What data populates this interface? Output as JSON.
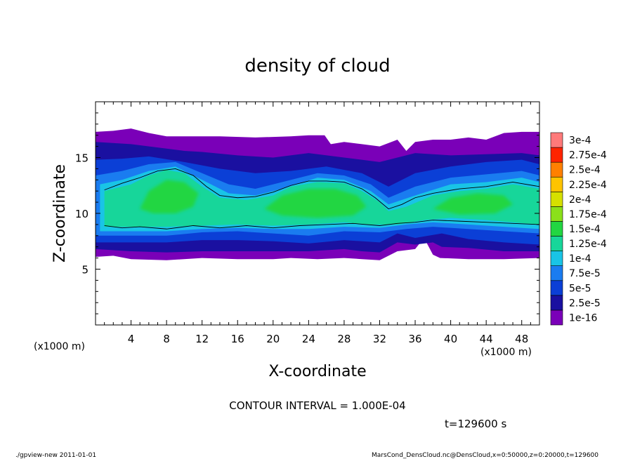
{
  "chart_data": {
    "type": "heatmap",
    "title": "density of cloud",
    "xlabel": "X-coordinate",
    "ylabel": "Z-coordinate",
    "x_unit": "(x1000 m)",
    "y_unit": "(x1000 m)",
    "xlim": [
      0,
      50
    ],
    "ylim": [
      0,
      20
    ],
    "x_ticks": [
      4,
      8,
      12,
      16,
      20,
      24,
      28,
      32,
      36,
      40,
      44,
      48
    ],
    "y_ticks": [
      5,
      10,
      15
    ],
    "colorbar": {
      "levels": [
        "1e-16",
        "2.5e-5",
        "5e-5",
        "7.5e-5",
        "1e-4",
        "1.25e-4",
        "1.5e-4",
        "1.75e-4",
        "2e-4",
        "2.25e-4",
        "2.5e-4",
        "2.75e-4",
        "3e-4"
      ],
      "colors": [
        "#7a00b8",
        "#1a10a0",
        "#0b3fd6",
        "#1a7cf0",
        "#19c4e6",
        "#17d69a",
        "#22d642",
        "#8be01a",
        "#d6e000",
        "#ffc400",
        "#ff8000",
        "#ff2400",
        "#ff7a7a"
      ]
    },
    "field_description_bands": [
      {
        "level": "1e-16",
        "z_range": [
          5.9,
          17.4
        ]
      },
      {
        "level": "5e-5",
        "z_range": [
          6.6,
          16.6
        ]
      },
      {
        "level": "1.25e-4",
        "z_range": [
          7.6,
          14.6
        ]
      }
    ]
  },
  "contour_interval": "CONTOUR INTERVAL = 1.000E-04",
  "time_label": "t=129600 s",
  "footer": {
    "left": "./gpview-new  2011-01-01",
    "right": "MarsCond_DensCloud.nc@DensCloud,x=0:50000,z=0:20000,t=129600"
  }
}
